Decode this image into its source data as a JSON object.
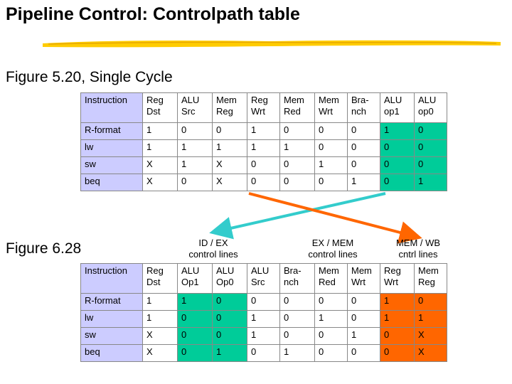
{
  "title": "Pipeline Control: Controlpath table",
  "figure_single": "Figure 5.20, Single Cycle",
  "figure_pipe": "Figure 6.28",
  "group_headers": {
    "idex": [
      "ID / EX",
      "control lines"
    ],
    "exmem": [
      "EX / MEM",
      "control lines"
    ],
    "memwb": [
      "MEM / WB",
      "cntrl lines"
    ]
  },
  "table1": {
    "headers": [
      [
        "Instruction",
        ""
      ],
      [
        "Reg",
        "Dst"
      ],
      [
        "ALU",
        "Src"
      ],
      [
        "Mem",
        "Reg"
      ],
      [
        "Reg",
        "Wrt"
      ],
      [
        "Mem",
        "Red"
      ],
      [
        "Mem",
        "Wrt"
      ],
      [
        "Bra-",
        "nch"
      ],
      [
        "ALU",
        "op1"
      ],
      [
        "ALU",
        "op0"
      ]
    ],
    "rows": [
      [
        "R-format",
        "1",
        "0",
        "0",
        "1",
        "0",
        "0",
        "0",
        "1",
        "0"
      ],
      [
        "lw",
        "1",
        "1",
        "1",
        "1",
        "1",
        "0",
        "0",
        "0",
        "0"
      ],
      [
        "sw",
        "X",
        "1",
        "X",
        "0",
        "0",
        "1",
        "0",
        "0",
        "0"
      ],
      [
        "beq",
        "X",
        "0",
        "X",
        "0",
        "0",
        "0",
        "1",
        "0",
        "1"
      ]
    ]
  },
  "table2": {
    "headers": [
      [
        "Instruction",
        ""
      ],
      [
        "Reg",
        "Dst"
      ],
      [
        "ALU",
        "Op1"
      ],
      [
        "ALU",
        "Op0"
      ],
      [
        "ALU",
        "Src"
      ],
      [
        "Bra-",
        "nch"
      ],
      [
        "Mem",
        "Red"
      ],
      [
        "Mem",
        "Wrt"
      ],
      [
        "Reg",
        "Wrt"
      ],
      [
        "Mem",
        "Reg"
      ]
    ],
    "rows": [
      [
        "R-format",
        "1",
        "1",
        "0",
        "0",
        "0",
        "0",
        "0",
        "1",
        "0"
      ],
      [
        "lw",
        "1",
        "0",
        "0",
        "1",
        "0",
        "1",
        "0",
        "1",
        "1"
      ],
      [
        "sw",
        "X",
        "0",
        "0",
        "1",
        "0",
        "0",
        "1",
        "0",
        "X"
      ],
      [
        "beq",
        "X",
        "0",
        "1",
        "0",
        "1",
        "0",
        "0",
        "0",
        "X"
      ]
    ]
  },
  "colors": {
    "instruction": "#ccccff",
    "green": "#00cc99",
    "orange": "#ff6600",
    "arrow_orange": "#ff6600",
    "arrow_teal": "#33cccc",
    "underline": "#ffcc00"
  }
}
